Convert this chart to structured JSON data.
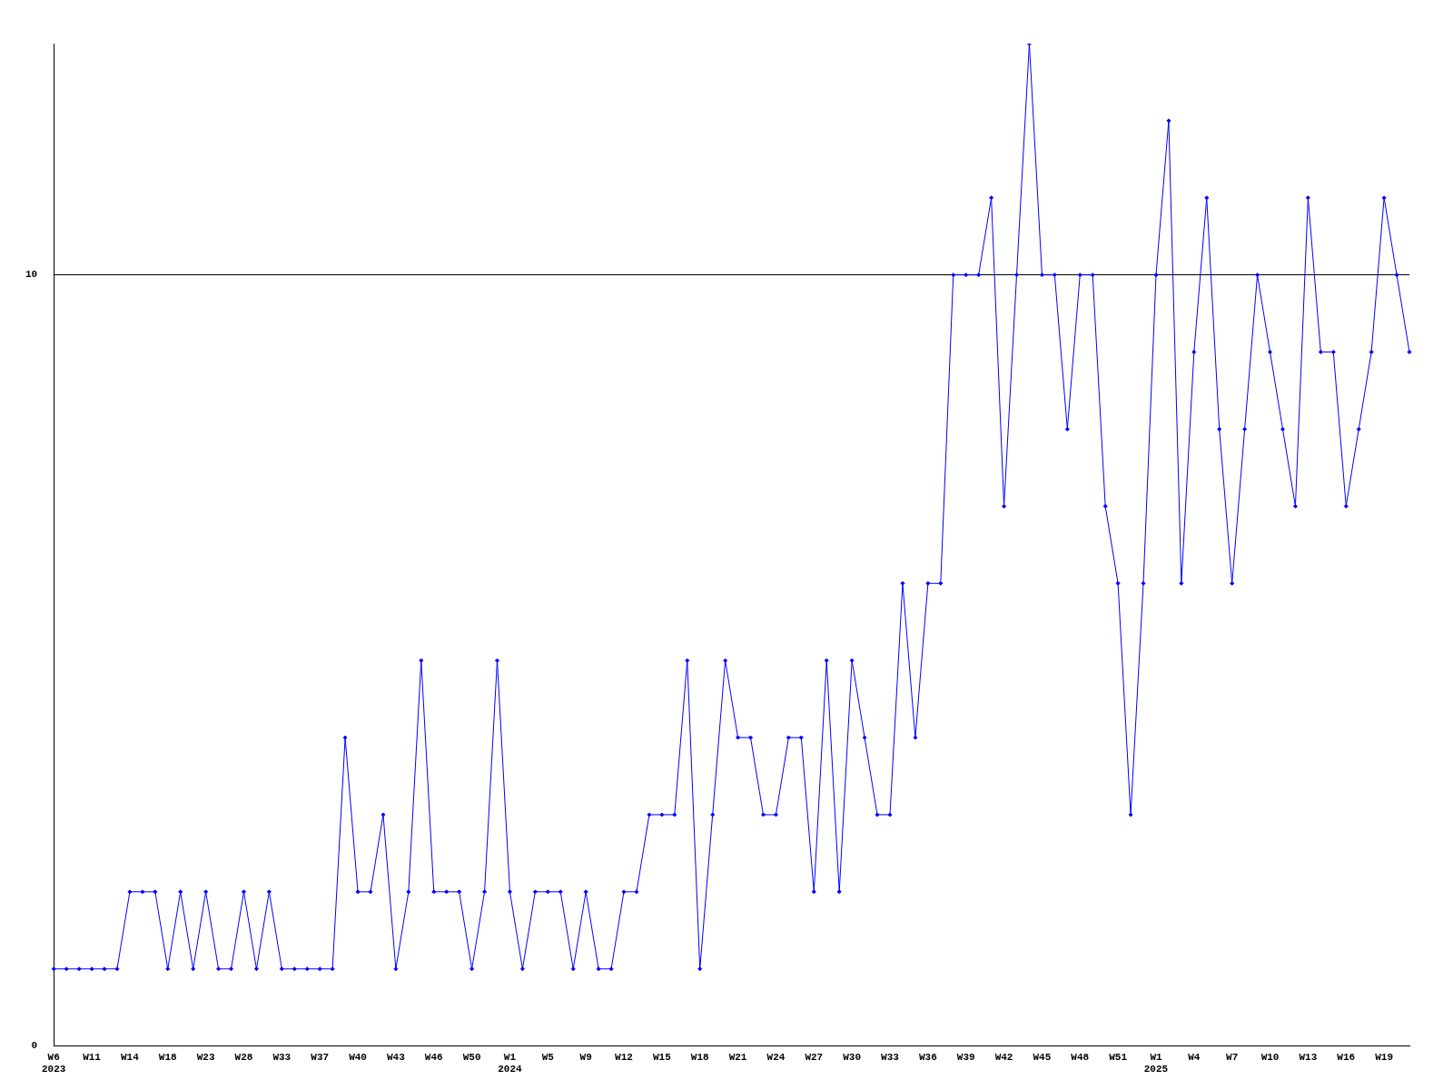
{
  "chart_data": {
    "type": "line",
    "categories": [
      "W6\n2023",
      null,
      null,
      "W11",
      null,
      null,
      "W14",
      null,
      null,
      "W18",
      null,
      null,
      "W23",
      null,
      null,
      "W28",
      null,
      null,
      "W33",
      null,
      null,
      "W37",
      null,
      null,
      "W40",
      null,
      null,
      "W43",
      null,
      null,
      "W46",
      null,
      null,
      "W50",
      null,
      null,
      "W1\n2024",
      null,
      null,
      "W5",
      null,
      null,
      "W9",
      null,
      null,
      "W12",
      null,
      null,
      "W15",
      null,
      null,
      "W18",
      null,
      null,
      "W21",
      null,
      null,
      "W24",
      null,
      null,
      "W27",
      null,
      null,
      "W30",
      null,
      null,
      "W33",
      null,
      null,
      "W36",
      null,
      null,
      "W39",
      null,
      null,
      "W42",
      null,
      null,
      "W45",
      null,
      null,
      "W48",
      null,
      null,
      "W51",
      null,
      null,
      "W1\n2025",
      null,
      null,
      "W4",
      null,
      null,
      "W7",
      null,
      null,
      "W10",
      null,
      null,
      "W13",
      null,
      null,
      "W16",
      null,
      null,
      "W19",
      null,
      null
    ],
    "series": [
      {
        "color": "#0000ff",
        "values": [
          1,
          1,
          1,
          1,
          1,
          1,
          2,
          2,
          2,
          1,
          2,
          1,
          2,
          1,
          1,
          2,
          1,
          2,
          1,
          1,
          1,
          1,
          1,
          4,
          2,
          2,
          3,
          1,
          2,
          5,
          2,
          2,
          2,
          1,
          2,
          5,
          2,
          1,
          2,
          2,
          2,
          1,
          2,
          1,
          1,
          2,
          2,
          3,
          3,
          3,
          5,
          1,
          3,
          5,
          4,
          4,
          3,
          3,
          4,
          4,
          2,
          5,
          2,
          5,
          4,
          3,
          3,
          6,
          4,
          6,
          6,
          10,
          10,
          10,
          11,
          7,
          10,
          13,
          10,
          10,
          8,
          10,
          10,
          7,
          6,
          3,
          6,
          10,
          12,
          6,
          9,
          11,
          8,
          6,
          8,
          10,
          9,
          8,
          7,
          11,
          9,
          9,
          7,
          8,
          9,
          11,
          10,
          9
        ]
      }
    ],
    "ylim": [
      0,
      13
    ],
    "yticks": [
      0,
      10
    ],
    "grid": "y",
    "marker": "diamond",
    "line_style": "solid"
  }
}
